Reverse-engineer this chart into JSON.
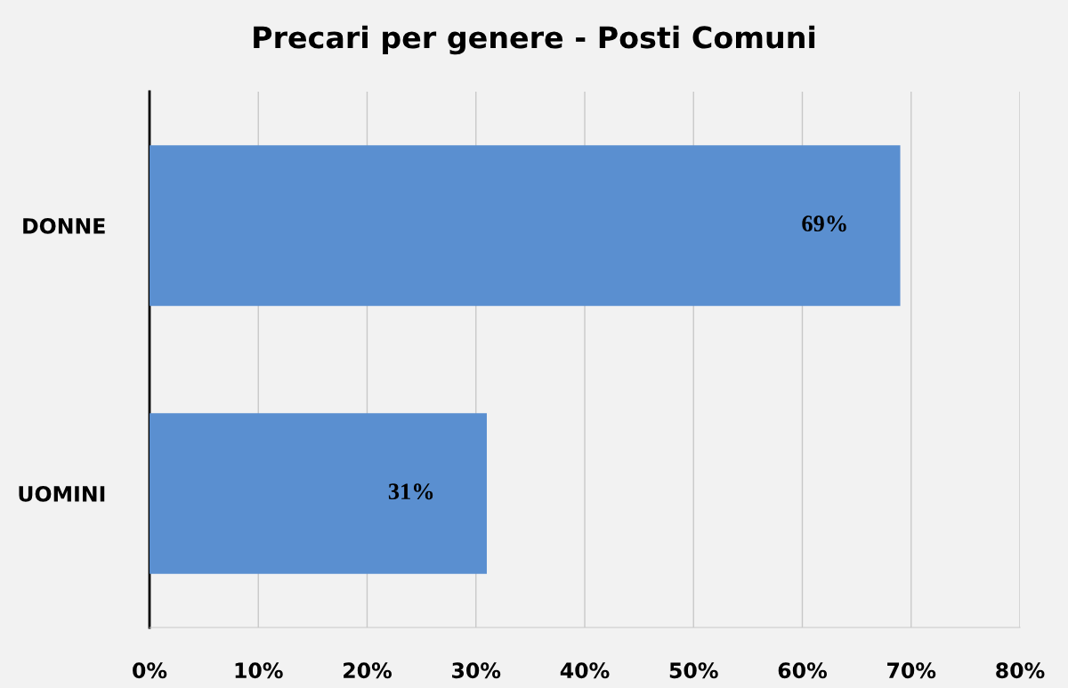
{
  "chart_data": {
    "type": "bar",
    "orientation": "horizontal",
    "title": "Precari per genere - Posti Comuni",
    "categories": [
      "DONNE",
      "UOMINI"
    ],
    "values": [
      69,
      31
    ],
    "value_labels": [
      "69%",
      "31%"
    ],
    "color": "#5a8fd0",
    "xlim": [
      0,
      80
    ],
    "xticks": [
      {
        "value": 0,
        "label": "0%"
      },
      {
        "value": 10,
        "label": "10%"
      },
      {
        "value": 20,
        "label": "20%"
      },
      {
        "value": 30,
        "label": "30%"
      },
      {
        "value": 40,
        "label": "40%"
      },
      {
        "value": 50,
        "label": "50%"
      },
      {
        "value": 60,
        "label": "60%"
      },
      {
        "value": 70,
        "label": "70%"
      },
      {
        "value": 80,
        "label": "80%"
      }
    ],
    "grid": "x",
    "legend": false
  }
}
